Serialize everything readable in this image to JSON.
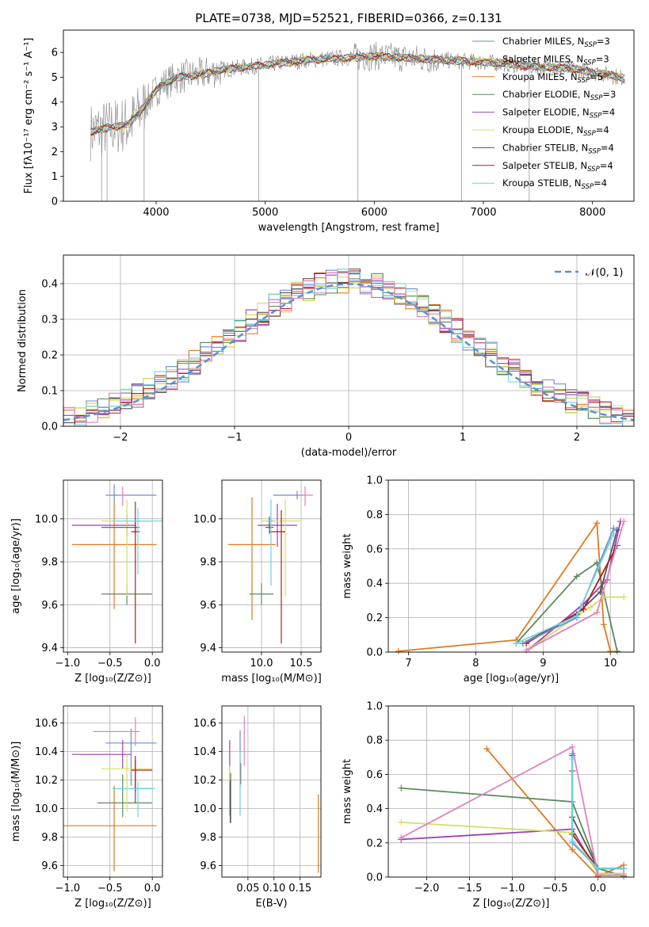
{
  "figure_title": "PLATE=0738, MJD=52521, FIBERID=0366, z=0.131",
  "colors": {
    "Chabrier MILES": "#6a8ed8",
    "Salpeter MILES": "#d0d048",
    "Kroupa MILES": "#e07a22",
    "Chabrier ELODIE": "#5a8a5a",
    "Salpeter ELODIE": "#9b3fb0",
    "Kroupa ELODIE": "#d8dc62",
    "Chabrier STELIB": "#555555",
    "Salpeter STELIB": "#b01c1c",
    "Kroupa STELIB": "#6ed4dc",
    "pink": "#e080c0",
    "gray": "#888888"
  },
  "chart_data": [
    {
      "id": "spectrum",
      "type": "line",
      "xlabel": "wavelength [Angstrom, rest frame]",
      "ylabel": "Flux [fλ10⁻¹⁷ erg cm⁻² s⁻¹ A⁻¹]",
      "xlim": [
        3150,
        8380
      ],
      "ylim": [
        0,
        6.9
      ],
      "xticks": [
        4000,
        5000,
        6000,
        7000,
        8000
      ],
      "yticks": [
        0,
        1,
        2,
        3,
        4,
        5,
        6
      ],
      "grid": false,
      "legend_position": "right",
      "legend": [
        {
          "label": "Chabrier MILES, N",
          "sub": "SSP",
          "tail": "=3",
          "color": "#6a8ed8"
        },
        {
          "label": "Salpeter MILES, N",
          "sub": "SSP",
          "tail": "=3",
          "color": "#d0d048"
        },
        {
          "label": "Kroupa MILES, N",
          "sub": "SSP",
          "tail": "=5",
          "color": "#e07a22"
        },
        {
          "label": "Chabrier ELODIE, N",
          "sub": "SSP",
          "tail": "=3",
          "color": "#5a8a5a"
        },
        {
          "label": "Salpeter ELODIE, N",
          "sub": "SSP",
          "tail": "=4",
          "color": "#9b3fb0"
        },
        {
          "label": "Kroupa ELODIE, N",
          "sub": "SSP",
          "tail": "=4",
          "color": "#d8dc62"
        },
        {
          "label": "Chabrier STELIB, N",
          "sub": "SSP",
          "tail": "=4",
          "color": "#555555"
        },
        {
          "label": "Salpeter STELIB, N",
          "sub": "SSP",
          "tail": "=4",
          "color": "#b01c1c"
        },
        {
          "label": "Kroupa STELIB, N",
          "sub": "SSP",
          "tail": "=4",
          "color": "#6ed4dc"
        }
      ],
      "continuum": {
        "x": [
          3400,
          3600,
          3750,
          3850,
          3950,
          4050,
          4200,
          4400,
          4600,
          4800,
          5000,
          5200,
          5400,
          5600,
          5800,
          6000,
          6200,
          6400,
          6600,
          6800,
          7000,
          7200,
          7400,
          7600,
          7800,
          8000,
          8150,
          8300
        ],
        "y": [
          2.8,
          3.0,
          3.1,
          3.6,
          4.2,
          4.7,
          5.0,
          5.1,
          5.3,
          5.4,
          5.5,
          5.6,
          5.7,
          5.75,
          5.8,
          5.85,
          5.8,
          5.75,
          5.7,
          5.65,
          5.6,
          5.55,
          5.45,
          5.4,
          5.35,
          5.2,
          5.1,
          4.95
        ]
      },
      "data_lines": [
        {
          "x": 3500,
          "y": 0
        },
        {
          "x": 3550,
          "y": 0
        },
        {
          "x": 3890,
          "y": 0
        },
        {
          "x": 4940,
          "y": 0
        },
        {
          "x": 5850,
          "y": 0
        },
        {
          "x": 6800,
          "y": 0
        },
        {
          "x": 7420,
          "y": 0
        }
      ]
    },
    {
      "id": "residuals",
      "type": "step",
      "xlabel": "(data-model)/error",
      "ylabel": "Normed distribution",
      "xlim": [
        -2.5,
        2.5
      ],
      "ylim": [
        0,
        0.48
      ],
      "xticks": [
        -2,
        -1,
        0,
        1,
        2
      ],
      "yticks": [
        0.0,
        0.1,
        0.2,
        0.3,
        0.4
      ],
      "grid": true,
      "legend_position": "top-right",
      "gauss_label": "𝒩(0, 1)",
      "bin_width": 0.1
    },
    {
      "id": "age_vs_Z",
      "type": "errorbar",
      "xlabel": "Z [log₁₀(Z/Z⊙)]",
      "ylabel": "age  [log₁₀(age/yr)]",
      "xlim": [
        -1.05,
        0.12
      ],
      "ylim": [
        9.38,
        10.18
      ],
      "xticks": [
        -1.0,
        -0.5,
        0.0
      ],
      "yticks": [
        9.4,
        9.6,
        9.8,
        10.0
      ],
      "grid": true,
      "points": [
        {
          "x": -0.45,
          "y": 10.11,
          "xe": [
            0.1,
            0.5
          ],
          "ye": [
            0.05,
            0.05
          ],
          "c": "#6a8ed8"
        },
        {
          "x": -0.35,
          "y": 10.11,
          "xe": [
            0.05,
            0.05
          ],
          "ye": [
            0.05,
            0.04
          ],
          "c": "#e080c0"
        },
        {
          "x": -0.45,
          "y": 9.88,
          "xe": [
            0.5,
            0.5
          ],
          "ye": [
            0.3,
            0.2
          ],
          "c": "#e07a22"
        },
        {
          "x": -0.3,
          "y": 9.65,
          "xe": [
            0.3,
            0.3
          ],
          "ye": [
            0.05,
            0.05
          ],
          "c": "#5a8a5a"
        },
        {
          "x": -0.3,
          "y": 9.97,
          "xe": [
            0.65,
            0.1
          ],
          "ye": [
            0.05,
            0.05
          ],
          "c": "#9b3fb0"
        },
        {
          "x": -0.3,
          "y": 9.99,
          "xe": [
            0.3,
            0.3
          ],
          "ye": [
            0.35,
            0.1
          ],
          "c": "#d8dc62"
        },
        {
          "x": -0.2,
          "y": 9.96,
          "xe": [
            0.4,
            0.05
          ],
          "ye": [
            0.03,
            0.12
          ],
          "c": "#555555"
        },
        {
          "x": -0.2,
          "y": 9.94,
          "xe": [
            0.05,
            0.05
          ],
          "ye": [
            0.52,
            0.05
          ],
          "c": "#b01c1c"
        },
        {
          "x": -0.17,
          "y": 9.99,
          "xe": [
            0.3,
            0.3
          ],
          "ye": [
            0.25,
            0.06
          ],
          "c": "#6ed4dc"
        }
      ]
    },
    {
      "id": "age_vs_mass",
      "type": "errorbar",
      "xlabel": "mass [log₁₀(M/M⊙)]",
      "ylabel": "",
      "xlim": [
        9.5,
        10.75
      ],
      "ylim": [
        9.38,
        10.18
      ],
      "xticks": [
        10.0,
        10.5
      ],
      "yticks": [
        9.4,
        9.6,
        9.8,
        10.0
      ],
      "grid": true,
      "points": [
        {
          "x": 10.45,
          "y": 10.11,
          "xe": [
            0.3,
            0.1
          ],
          "ye": [
            0.02,
            0.02
          ],
          "c": "#6a8ed8"
        },
        {
          "x": 10.55,
          "y": 10.11,
          "xe": [
            0.1,
            0.1
          ],
          "ye": [
            0.05,
            0.04
          ],
          "c": "#e080c0"
        },
        {
          "x": 9.88,
          "y": 9.88,
          "xe": [
            0.3,
            0.3
          ],
          "ye": [
            0.35,
            0.22
          ],
          "c": "#e07a22"
        },
        {
          "x": 10.0,
          "y": 9.65,
          "xe": [
            0.15,
            0.15
          ],
          "ye": [
            0.05,
            0.05
          ],
          "c": "#5a8a5a"
        },
        {
          "x": 10.2,
          "y": 9.97,
          "xe": [
            0.25,
            0.25
          ],
          "ye": [
            0.1,
            0.1
          ],
          "c": "#9b3fb0"
        },
        {
          "x": 10.3,
          "y": 9.99,
          "xe": [
            0.3,
            0.2
          ],
          "ye": [
            0.35,
            0.1
          ],
          "c": "#d8dc62"
        },
        {
          "x": 10.1,
          "y": 9.96,
          "xe": [
            0.05,
            0.05
          ],
          "ye": [
            0.03,
            0.05
          ],
          "c": "#555555"
        },
        {
          "x": 10.25,
          "y": 9.94,
          "xe": [
            0.15,
            0.05
          ],
          "ye": [
            0.52,
            0.1
          ],
          "c": "#b01c1c"
        },
        {
          "x": 10.12,
          "y": 9.99,
          "xe": [
            0.05,
            0.05
          ],
          "ye": [
            0.3,
            0.1
          ],
          "c": "#6ed4dc"
        }
      ]
    },
    {
      "id": "weight_vs_age",
      "type": "line",
      "xlabel": "age  [log₁₀(age/yr)]",
      "ylabel": "mass weight",
      "xlim": [
        6.7,
        10.35
      ],
      "ylim": [
        0,
        1.0
      ],
      "xticks": [
        7,
        8,
        9,
        10
      ],
      "yticks": [
        0.0,
        0.2,
        0.4,
        0.6,
        0.8,
        1.0
      ],
      "grid": true,
      "series": [
        {
          "c": "#e07a22",
          "x": [
            6.85,
            8.6,
            9.8,
            9.9,
            10.0
          ],
          "y": [
            0.005,
            0.07,
            0.75,
            0.16,
            0.005
          ]
        },
        {
          "c": "#5a8a5a",
          "x": [
            8.6,
            9.5,
            9.8,
            10.1
          ],
          "y": [
            0.05,
            0.44,
            0.52,
            0.005
          ]
        },
        {
          "c": "#9b3fb0",
          "x": [
            8.8,
            9.6,
            9.95,
            10.15
          ],
          "y": [
            0.02,
            0.28,
            0.42,
            0.76
          ]
        },
        {
          "c": "#d8dc62",
          "x": [
            8.8,
            9.7,
            9.9,
            10.2
          ],
          "y": [
            0.02,
            0.26,
            0.32,
            0.32
          ]
        },
        {
          "c": "#555555",
          "x": [
            8.7,
            9.5,
            9.85,
            10.1
          ],
          "y": [
            0.05,
            0.22,
            0.35,
            0.71
          ]
        },
        {
          "c": "#b01c1c",
          "x": [
            8.75,
            9.6,
            10.1
          ],
          "y": [
            0.05,
            0.25,
            0.62
          ]
        },
        {
          "c": "#e080c0",
          "x": [
            8.75,
            9.8,
            10.2
          ],
          "y": [
            0.01,
            0.23,
            0.76
          ]
        },
        {
          "c": "#6a8ed8",
          "x": [
            8.7,
            9.5,
            10.05
          ],
          "y": [
            0.05,
            0.2,
            0.72
          ]
        },
        {
          "c": "#6ed4dc",
          "x": [
            8.6,
            9.5,
            10.05
          ],
          "y": [
            0.05,
            0.21,
            0.69
          ]
        }
      ]
    },
    {
      "id": "mass_vs_Z",
      "type": "errorbar",
      "xlabel": "Z [log₁₀(Z/Z⊙)]",
      "ylabel": "mass [log₁₀(M/M⊙)]",
      "xlim": [
        -1.05,
        0.12
      ],
      "ylim": [
        9.52,
        10.72
      ],
      "xticks": [
        -1.0,
        -0.5,
        0.0
      ],
      "yticks": [
        9.6,
        9.8,
        10.0,
        10.2,
        10.4,
        10.6
      ],
      "grid": true,
      "points": [
        {
          "x": -0.25,
          "y": 10.46,
          "xe": [
            0.3,
            0.3
          ],
          "ye": [
            0.3,
            0.1
          ],
          "c": "#6a8ed8"
        },
        {
          "x": -0.2,
          "y": 10.54,
          "xe": [
            0.5,
            0.05
          ],
          "ye": [
            0.1,
            0.1
          ],
          "c": "#e080c0"
        },
        {
          "x": -0.45,
          "y": 9.88,
          "xe": [
            0.6,
            0.5
          ],
          "ye": [
            0.32,
            0.28
          ],
          "c": "#e07a22"
        },
        {
          "x": -0.35,
          "y": 10.04,
          "xe": [
            0.3,
            0.35
          ],
          "ye": [
            0.1,
            0.2
          ],
          "c": "#5a8a5a"
        },
        {
          "x": -0.35,
          "y": 10.38,
          "xe": [
            0.6,
            0.1
          ],
          "ye": [
            0.1,
            0.1
          ],
          "c": "#9b3fb0"
        },
        {
          "x": -0.3,
          "y": 10.28,
          "xe": [
            0.3,
            0.3
          ],
          "ye": [
            0.3,
            0.1
          ],
          "c": "#d8dc62"
        },
        {
          "x": -0.2,
          "y": 10.14,
          "xe": [
            0.05,
            0.2
          ],
          "ye": [
            0.1,
            0.2
          ],
          "c": "#555555"
        },
        {
          "x": -0.2,
          "y": 10.27,
          "xe": [
            0.05,
            0.2
          ],
          "ye": [
            0.15,
            0.1
          ],
          "c": "#b01c1c"
        },
        {
          "x": -0.17,
          "y": 10.14,
          "xe": [
            0.3,
            0.2
          ],
          "ye": [
            0.2,
            0.05
          ],
          "c": "#6ed4dc"
        }
      ]
    },
    {
      "id": "mass_vs_ebv",
      "type": "errorbar",
      "xlabel": "E(B-V)",
      "ylabel": "",
      "xlim": [
        0.0,
        0.19
      ],
      "ylim": [
        9.52,
        10.72
      ],
      "xticks": [
        0.05,
        0.1,
        0.15
      ],
      "yticks": [
        9.6,
        9.8,
        10.0,
        10.2,
        10.4,
        10.6
      ],
      "grid": true,
      "points": [
        {
          "x": 0.035,
          "y": 10.4,
          "xe": [
            0.0,
            0.0
          ],
          "ye": [
            0.25,
            0.15
          ],
          "c": "#6a8ed8"
        },
        {
          "x": 0.043,
          "y": 10.5,
          "xe": [
            0.0,
            0.0
          ],
          "ye": [
            0.2,
            0.15
          ],
          "c": "#e080c0"
        },
        {
          "x": 0.185,
          "y": 9.85,
          "xe": [
            0.0,
            0.0
          ],
          "ye": [
            0.3,
            0.25
          ],
          "c": "#e07a22"
        },
        {
          "x": 0.017,
          "y": 10.1,
          "xe": [
            0.0,
            0.0
          ],
          "ye": [
            0.2,
            0.15
          ],
          "c": "#5a8a5a"
        },
        {
          "x": 0.015,
          "y": 10.35,
          "xe": [
            0.0,
            0.0
          ],
          "ye": [
            0.4,
            0.13
          ],
          "c": "#9b3fb0"
        },
        {
          "x": 0.015,
          "y": 10.15,
          "xe": [
            0.0,
            0.0
          ],
          "ye": [
            0.2,
            0.15
          ],
          "c": "#d8dc62"
        },
        {
          "x": 0.016,
          "y": 10.1,
          "xe": [
            0.0,
            0.0
          ],
          "ye": [
            0.2,
            0.1
          ],
          "c": "#555555"
        },
        {
          "x": 0.036,
          "y": 10.27,
          "xe": [
            0.0,
            0.0
          ],
          "ye": [
            0.1,
            0.05
          ],
          "c": "#b01c1c"
        },
        {
          "x": 0.035,
          "y": 10.1,
          "xe": [
            0.0,
            0.0
          ],
          "ye": [
            0.15,
            0.3
          ],
          "c": "#6ed4dc"
        }
      ]
    },
    {
      "id": "weight_vs_Z",
      "type": "line",
      "xlabel": "Z [log₁₀(Z/Z⊙)]",
      "ylabel": "mass weight",
      "xlim": [
        -2.45,
        0.42
      ],
      "ylim": [
        0,
        1.0
      ],
      "xticks": [
        -2.0,
        -1.5,
        -1.0,
        -0.5,
        0.0
      ],
      "yticks": [
        0.0,
        0.2,
        0.4,
        0.6,
        0.8,
        1.0
      ],
      "grid": true,
      "series": [
        {
          "c": "#e07a22",
          "x": [
            -1.3,
            -0.3,
            0.0,
            0.3
          ],
          "y": [
            0.75,
            0.16,
            0.005,
            0.07
          ]
        },
        {
          "c": "#5a8a5a",
          "x": [
            -2.3,
            -0.3,
            0.0,
            0.3
          ],
          "y": [
            0.52,
            0.44,
            0.05,
            0.005
          ]
        },
        {
          "c": "#9b3fb0",
          "x": [
            -2.3,
            -0.3,
            0.0,
            0.3
          ],
          "y": [
            0.22,
            0.28,
            0.02,
            0.02
          ]
        },
        {
          "c": "#d8dc62",
          "x": [
            -2.3,
            -0.3,
            0.0,
            0.3
          ],
          "y": [
            0.32,
            0.26,
            0.02,
            0.02
          ]
        },
        {
          "c": "#555555",
          "x": [
            -0.3,
            -0.3,
            0.0,
            0.3
          ],
          "y": [
            0.71,
            0.35,
            0.05,
            0.05
          ]
        },
        {
          "c": "#b01c1c",
          "x": [
            -0.3,
            -0.3,
            0.0,
            0.3
          ],
          "y": [
            0.62,
            0.25,
            0.05,
            0.05
          ]
        },
        {
          "c": "#e080c0",
          "x": [
            -2.3,
            -0.3,
            0.0,
            0.3
          ],
          "y": [
            0.23,
            0.76,
            0.01,
            0.01
          ]
        },
        {
          "c": "#6a8ed8",
          "x": [
            -0.3,
            -0.3,
            0.0,
            0.3
          ],
          "y": [
            0.72,
            0.2,
            0.05,
            0.05
          ]
        },
        {
          "c": "#6ed4dc",
          "x": [
            -0.3,
            -0.3,
            0.0,
            0.3
          ],
          "y": [
            0.69,
            0.21,
            0.05,
            0.05
          ]
        }
      ]
    }
  ]
}
